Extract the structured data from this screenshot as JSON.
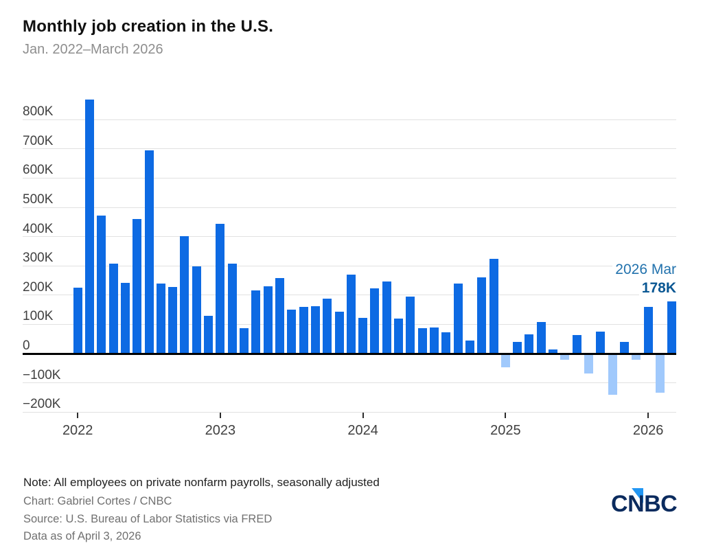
{
  "header": {
    "title": "Monthly job creation in the U.S.",
    "subtitle": "Jan. 2022–March 2026"
  },
  "chart_data": {
    "type": "bar",
    "title": "Monthly job creation in the U.S.",
    "subtitle": "Jan. 2022–March 2026",
    "unit": "thousands of jobs (K)",
    "months": [
      "2022-01",
      "2022-02",
      "2022-03",
      "2022-04",
      "2022-05",
      "2022-06",
      "2022-07",
      "2022-08",
      "2022-09",
      "2022-10",
      "2022-11",
      "2022-12",
      "2023-01",
      "2023-02",
      "2023-03",
      "2023-04",
      "2023-05",
      "2023-06",
      "2023-07",
      "2023-08",
      "2023-09",
      "2023-10",
      "2023-11",
      "2023-12",
      "2024-01",
      "2024-02",
      "2024-03",
      "2024-04",
      "2024-05",
      "2024-06",
      "2024-07",
      "2024-08",
      "2024-09",
      "2024-10",
      "2024-11",
      "2024-12",
      "2025-01",
      "2025-02",
      "2025-03",
      "2025-04",
      "2025-05",
      "2025-06",
      "2025-07",
      "2025-08",
      "2025-09",
      "2025-10",
      "2025-11",
      "2025-12",
      "2026-01",
      "2026-02",
      "2026-03"
    ],
    "values": [
      226,
      869,
      472,
      307,
      242,
      461,
      696,
      239,
      228,
      401,
      298,
      129,
      444,
      307,
      88,
      217,
      229,
      259,
      150,
      159,
      161,
      188,
      143,
      270,
      121,
      223,
      246,
      120,
      196,
      88,
      90,
      72,
      240,
      44,
      261,
      323,
      -48,
      41,
      65,
      109,
      13,
      -22,
      64,
      -68,
      76,
      -141,
      40,
      -22,
      159,
      -134,
      178
    ],
    "ylim": [
      -200,
      870
    ],
    "grid": "horizontal",
    "legend": "none",
    "yticks": [
      {
        "value": 800,
        "label": "800K"
      },
      {
        "value": 700,
        "label": "700K"
      },
      {
        "value": 600,
        "label": "600K"
      },
      {
        "value": 500,
        "label": "500K"
      },
      {
        "value": 400,
        "label": "400K"
      },
      {
        "value": 300,
        "label": "300K"
      },
      {
        "value": 200,
        "label": "200K"
      },
      {
        "value": 100,
        "label": "100K"
      },
      {
        "value": 0,
        "label": "0"
      },
      {
        "value": -100,
        "label": "−100K"
      },
      {
        "value": -200,
        "label": "−200K"
      }
    ],
    "xticks": [
      {
        "month_index": 0,
        "label": "2022"
      },
      {
        "month_index": 12,
        "label": "2023"
      },
      {
        "month_index": 24,
        "label": "2024"
      },
      {
        "month_index": 36,
        "label": "2025"
      },
      {
        "month_index": 48,
        "label": "2026"
      }
    ],
    "colors": {
      "positive_bar": "#0d6ae3",
      "negative_bar": "#a0c9fc",
      "gridline": "#e1e1e1",
      "zero_line": "#000000",
      "axis_text": "#404040"
    },
    "annotation": {
      "line1": "2026 Mar",
      "line2": "178K",
      "line1_color": "#2272ad",
      "line2_color": "#0a5793",
      "month_index": 50,
      "value": 178
    }
  },
  "footer": {
    "note": "Note: All employees on private nonfarm payrolls, seasonally adjusted",
    "credit": "Chart: Gabriel Cortes / CNBC",
    "source": "Source: U.S. Bureau of Labor Statistics via FRED",
    "as_of": "Data as of April 3, 2026"
  },
  "logo": {
    "c": "C",
    "n": "N",
    "bc": "BC",
    "navy": "#0b2b5e",
    "triangle_blue": "#2196f3"
  }
}
